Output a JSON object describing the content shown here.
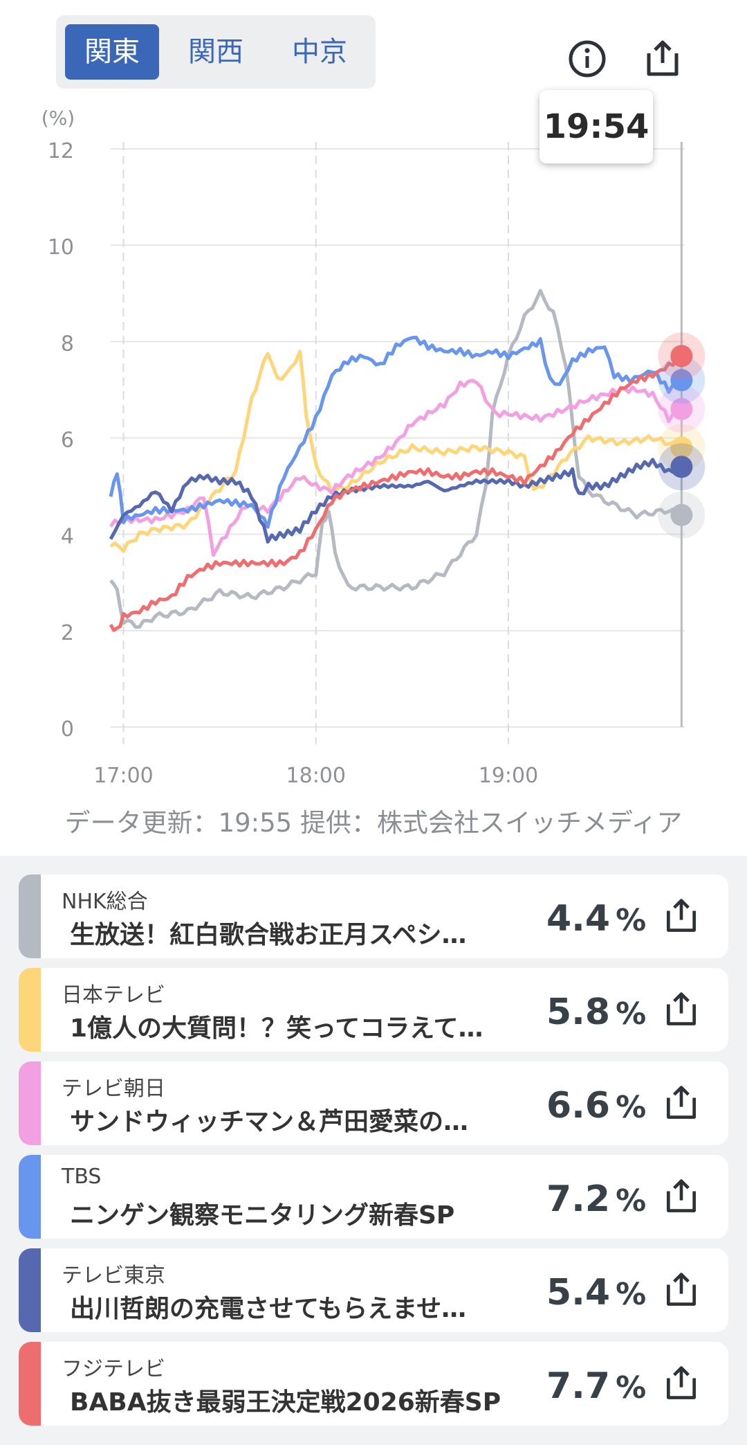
{
  "region_tabs": [
    {
      "label": "関東",
      "active": true
    },
    {
      "label": "関西",
      "active": false
    },
    {
      "label": "中京",
      "active": false
    }
  ],
  "icons": {
    "info": "info-icon",
    "share": "share-icon"
  },
  "tooltip_time": "19:54",
  "update_credit": "データ更新：19:55 提供：株式会社スイッチメディア",
  "channels": [
    {
      "name": "NHK総合",
      "program": "生放送！紅白歌合戦お正月スペシ…",
      "rating": "4.4",
      "unit": "%",
      "color": "#b5bac2"
    },
    {
      "name": "日本テレビ",
      "program": "1億人の大質問！？笑ってコラえて…",
      "rating": "5.8",
      "unit": "%",
      "color": "#fdd67a"
    },
    {
      "name": "テレビ朝日",
      "program": "サンドウィッチマン＆芦田愛菜の…",
      "rating": "6.6",
      "unit": "%",
      "color": "#f3a0e2"
    },
    {
      "name": "TBS",
      "program": "ニンゲン観察モニタリング新春SP",
      "rating": "7.2",
      "unit": "%",
      "color": "#6895ee"
    },
    {
      "name": "テレビ東京",
      "program": "出川哲朗の充電させてもらえませ…",
      "rating": "5.4",
      "unit": "%",
      "color": "#5568b0"
    },
    {
      "name": "フジテレビ",
      "program": "BABA抜き最弱王決定戦2026新春SP",
      "rating": "7.7",
      "unit": "%",
      "color": "#ee6e6f"
    }
  ],
  "chart_data": {
    "type": "line",
    "ylabel": "(%)",
    "ylim": [
      0,
      12
    ],
    "yticks": [
      "0",
      "2",
      "4",
      "6",
      "8",
      "10",
      "12"
    ],
    "xlim": [
      "16:56",
      "19:55"
    ],
    "xticks": [
      "17:00",
      "18:00",
      "19:00"
    ],
    "grid": true,
    "cursor_time": "19:54",
    "series": [
      {
        "name": "NHK総合",
        "color": "#b5bac2",
        "points": [
          [
            "16:56",
            3.1
          ],
          [
            "16:58",
            2.8
          ],
          [
            "17:00",
            2.2
          ],
          [
            "17:05",
            2.1
          ],
          [
            "17:10",
            2.3
          ],
          [
            "17:20",
            2.4
          ],
          [
            "17:30",
            2.8
          ],
          [
            "17:40",
            2.7
          ],
          [
            "17:50",
            2.9
          ],
          [
            "18:00",
            3.2
          ],
          [
            "18:02",
            4.2
          ],
          [
            "18:04",
            4.5
          ],
          [
            "18:06",
            3.6
          ],
          [
            "18:10",
            2.9
          ],
          [
            "18:20",
            2.9
          ],
          [
            "18:30",
            2.9
          ],
          [
            "18:40",
            3.2
          ],
          [
            "18:45",
            3.6
          ],
          [
            "18:50",
            4.0
          ],
          [
            "18:53",
            5.0
          ],
          [
            "18:55",
            6.5
          ],
          [
            "19:00",
            7.7
          ],
          [
            "19:05",
            8.5
          ],
          [
            "19:10",
            9.0
          ],
          [
            "19:14",
            8.6
          ],
          [
            "19:18",
            7.5
          ],
          [
            "19:20",
            6.3
          ],
          [
            "19:22",
            5.2
          ],
          [
            "19:25",
            4.9
          ],
          [
            "19:30",
            4.7
          ],
          [
            "19:40",
            4.4
          ],
          [
            "19:50",
            4.5
          ],
          [
            "19:54",
            4.4
          ]
        ]
      },
      {
        "name": "日本テレビ",
        "color": "#fdd67a",
        "points": [
          [
            "16:56",
            3.8
          ],
          [
            "17:00",
            3.7
          ],
          [
            "17:05",
            4.0
          ],
          [
            "17:10",
            4.1
          ],
          [
            "17:20",
            4.2
          ],
          [
            "17:25",
            4.6
          ],
          [
            "17:35",
            5.3
          ],
          [
            "17:40",
            6.8
          ],
          [
            "17:45",
            7.8
          ],
          [
            "17:48",
            7.2
          ],
          [
            "17:52",
            7.4
          ],
          [
            "17:55",
            7.8
          ],
          [
            "17:57",
            6.5
          ],
          [
            "18:00",
            5.4
          ],
          [
            "18:05",
            4.9
          ],
          [
            "18:10",
            5.0
          ],
          [
            "18:20",
            5.5
          ],
          [
            "18:30",
            5.8
          ],
          [
            "18:40",
            5.7
          ],
          [
            "18:50",
            5.8
          ],
          [
            "19:00",
            5.7
          ],
          [
            "19:05",
            5.6
          ],
          [
            "19:08",
            4.9
          ],
          [
            "19:12",
            5.1
          ],
          [
            "19:18",
            5.6
          ],
          [
            "19:25",
            6.0
          ],
          [
            "19:35",
            5.9
          ],
          [
            "19:45",
            6.0
          ],
          [
            "19:54",
            5.8
          ]
        ]
      },
      {
        "name": "テレビ朝日",
        "color": "#f3a0e2",
        "points": [
          [
            "16:56",
            4.2
          ],
          [
            "17:00",
            4.3
          ],
          [
            "17:10",
            4.3
          ],
          [
            "17:20",
            4.5
          ],
          [
            "17:25",
            4.8
          ],
          [
            "17:28",
            3.6
          ],
          [
            "17:32",
            4.0
          ],
          [
            "17:38",
            4.6
          ],
          [
            "17:45",
            4.5
          ],
          [
            "17:55",
            5.2
          ],
          [
            "18:00",
            5.0
          ],
          [
            "18:05",
            4.9
          ],
          [
            "18:10",
            5.2
          ],
          [
            "18:20",
            5.6
          ],
          [
            "18:25",
            5.9
          ],
          [
            "18:30",
            6.3
          ],
          [
            "18:40",
            6.7
          ],
          [
            "18:45",
            7.1
          ],
          [
            "18:50",
            7.2
          ],
          [
            "18:53",
            6.8
          ],
          [
            "18:56",
            6.5
          ],
          [
            "19:00",
            6.5
          ],
          [
            "19:10",
            6.4
          ],
          [
            "19:18",
            6.6
          ],
          [
            "19:25",
            6.8
          ],
          [
            "19:30",
            6.9
          ],
          [
            "19:35",
            7.0
          ],
          [
            "19:40",
            7.0
          ],
          [
            "19:45",
            6.9
          ],
          [
            "19:50",
            6.4
          ],
          [
            "19:54",
            6.6
          ]
        ]
      },
      {
        "name": "TBS",
        "color": "#6895ee",
        "points": [
          [
            "16:56",
            4.8
          ],
          [
            "16:58",
            5.3
          ],
          [
            "17:00",
            4.3
          ],
          [
            "17:05",
            4.4
          ],
          [
            "17:10",
            4.5
          ],
          [
            "17:20",
            4.5
          ],
          [
            "17:30",
            4.7
          ],
          [
            "17:40",
            4.6
          ],
          [
            "17:45",
            4.2
          ],
          [
            "17:50",
            5.2
          ],
          [
            "17:55",
            5.8
          ],
          [
            "18:00",
            6.4
          ],
          [
            "18:05",
            7.3
          ],
          [
            "18:10",
            7.6
          ],
          [
            "18:15",
            7.7
          ],
          [
            "18:20",
            7.5
          ],
          [
            "18:25",
            7.9
          ],
          [
            "18:30",
            8.1
          ],
          [
            "18:35",
            7.9
          ],
          [
            "18:40",
            7.8
          ],
          [
            "18:45",
            7.8
          ],
          [
            "18:50",
            7.7
          ],
          [
            "18:55",
            7.8
          ],
          [
            "19:00",
            7.7
          ],
          [
            "19:10",
            8.0
          ],
          [
            "19:13",
            7.2
          ],
          [
            "19:16",
            7.1
          ],
          [
            "19:20",
            7.6
          ],
          [
            "19:25",
            7.8
          ],
          [
            "19:30",
            7.9
          ],
          [
            "19:33",
            7.3
          ],
          [
            "19:38",
            7.2
          ],
          [
            "19:45",
            7.4
          ],
          [
            "19:50",
            7.0
          ],
          [
            "19:54",
            7.2
          ]
        ]
      },
      {
        "name": "テレビ東京",
        "color": "#5568b0",
        "points": [
          [
            "16:56",
            3.9
          ],
          [
            "17:00",
            4.4
          ],
          [
            "17:05",
            4.6
          ],
          [
            "17:10",
            4.9
          ],
          [
            "17:15",
            4.5
          ],
          [
            "17:20",
            5.1
          ],
          [
            "17:25",
            5.2
          ],
          [
            "17:30",
            5.1
          ],
          [
            "17:35",
            5.1
          ],
          [
            "17:40",
            4.8
          ],
          [
            "17:45",
            3.9
          ],
          [
            "17:50",
            4.0
          ],
          [
            "17:55",
            4.1
          ],
          [
            "18:00",
            4.5
          ],
          [
            "18:05",
            4.8
          ],
          [
            "18:10",
            4.9
          ],
          [
            "18:20",
            5.0
          ],
          [
            "18:30",
            5.0
          ],
          [
            "18:35",
            5.1
          ],
          [
            "18:40",
            4.9
          ],
          [
            "18:45",
            5.0
          ],
          [
            "18:50",
            5.1
          ],
          [
            "19:00",
            5.1
          ],
          [
            "19:05",
            5.0
          ],
          [
            "19:10",
            5.1
          ],
          [
            "19:15",
            5.2
          ],
          [
            "19:20",
            5.3
          ],
          [
            "19:22",
            4.8
          ],
          [
            "19:25",
            5.0
          ],
          [
            "19:30",
            5.0
          ],
          [
            "19:35",
            5.2
          ],
          [
            "19:40",
            5.4
          ],
          [
            "19:45",
            5.5
          ],
          [
            "19:50",
            5.3
          ],
          [
            "19:54",
            5.4
          ]
        ]
      },
      {
        "name": "フジテレビ",
        "color": "#ee6e6f",
        "points": [
          [
            "16:56",
            2.1
          ],
          [
            "16:58",
            2.0
          ],
          [
            "17:00",
            2.3
          ],
          [
            "17:05",
            2.4
          ],
          [
            "17:10",
            2.6
          ],
          [
            "17:15",
            2.7
          ],
          [
            "17:20",
            3.1
          ],
          [
            "17:25",
            3.3
          ],
          [
            "17:30",
            3.4
          ],
          [
            "17:40",
            3.4
          ],
          [
            "17:50",
            3.4
          ],
          [
            "17:55",
            3.6
          ],
          [
            "18:00",
            4.1
          ],
          [
            "18:05",
            4.7
          ],
          [
            "18:10",
            4.9
          ],
          [
            "18:15",
            5.0
          ],
          [
            "18:20",
            5.1
          ],
          [
            "18:25",
            5.2
          ],
          [
            "18:30",
            5.3
          ],
          [
            "18:35",
            5.3
          ],
          [
            "18:40",
            5.2
          ],
          [
            "18:45",
            5.2
          ],
          [
            "18:50",
            5.3
          ],
          [
            "18:55",
            5.3
          ],
          [
            "19:00",
            5.2
          ],
          [
            "19:05",
            5.1
          ],
          [
            "19:10",
            5.4
          ],
          [
            "19:15",
            5.7
          ],
          [
            "19:20",
            6.1
          ],
          [
            "19:25",
            6.4
          ],
          [
            "19:30",
            6.7
          ],
          [
            "19:35",
            7.0
          ],
          [
            "19:40",
            7.2
          ],
          [
            "19:45",
            7.3
          ],
          [
            "19:50",
            7.5
          ],
          [
            "19:54",
            7.7
          ]
        ]
      }
    ]
  }
}
